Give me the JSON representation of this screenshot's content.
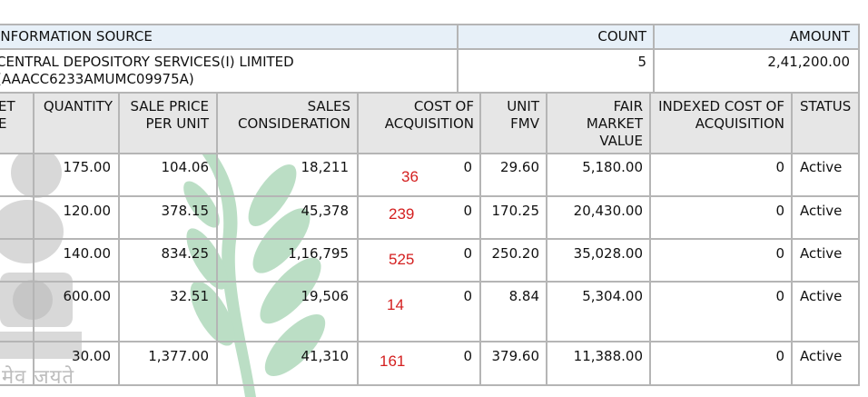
{
  "summary": {
    "headers": {
      "source": "INFORMATION SOURCE",
      "count": "COUNT",
      "amount": "AMOUNT"
    },
    "source_line1": "CENTRAL DEPOSITORY SERVICES(I) LIMITED",
    "source_line2": "(AAACC6233AMUMC09975A)",
    "count": "5",
    "amount": "2,41,200.00"
  },
  "table": {
    "columns": {
      "asset_type": [
        "ET",
        "E"
      ],
      "quantity": [
        "QUANTITY"
      ],
      "sale_price": [
        "SALE PRICE",
        "PER UNIT"
      ],
      "sales_consideration": [
        "SALES",
        "CONSIDERATION"
      ],
      "cost_of_acquisition": [
        "COST OF",
        "ACQUISITION"
      ],
      "unit_fmv": [
        "UNIT",
        "FMV"
      ],
      "fair_market_value": [
        "FAIR",
        "MARKET",
        "VALUE"
      ],
      "indexed_cost": [
        "INDEXED COST OF",
        "ACQUISITION"
      ],
      "status": [
        "STATUS"
      ]
    },
    "rows": [
      {
        "quantity": "175.00",
        "sale_price": "104.06",
        "sales_consideration": "18,211",
        "cost_of_acquisition": "0",
        "handwritten": "36",
        "unit_fmv": "29.60",
        "fair_market_value": "5,180.00",
        "indexed_cost": "0",
        "status": "Active"
      },
      {
        "quantity": "120.00",
        "sale_price": "378.15",
        "sales_consideration": "45,378",
        "cost_of_acquisition": "0",
        "handwritten": "239",
        "unit_fmv": "170.25",
        "fair_market_value": "20,430.00",
        "indexed_cost": "0",
        "status": "Active"
      },
      {
        "quantity": "140.00",
        "sale_price": "834.25",
        "sales_consideration": "1,16,795",
        "cost_of_acquisition": "0",
        "handwritten": "525",
        "unit_fmv": "250.20",
        "fair_market_value": "35,028.00",
        "indexed_cost": "0",
        "status": "Active"
      },
      {
        "quantity": "600.00",
        "sale_price": "32.51",
        "sales_consideration": "19,506",
        "cost_of_acquisition": "0",
        "handwritten": "14",
        "unit_fmv": "8.84",
        "fair_market_value": "5,304.00",
        "indexed_cost": "0",
        "status": "Active"
      },
      {
        "quantity": "30.00",
        "sale_price": "1,377.00",
        "sales_consideration": "41,310",
        "cost_of_acquisition": "0",
        "handwritten": "161",
        "unit_fmv": "379.60",
        "fair_market_value": "11,388.00",
        "indexed_cost": "0",
        "status": "Active"
      }
    ]
  },
  "watermark": {
    "emblem_motto": "मेव जयते",
    "icon": "national-emblem-icon",
    "wreath_color": "#2e9a4e"
  },
  "colors": {
    "header_bg": "#e6e6e6",
    "source_header_bg": "#e7f0f8",
    "handwritten": "#d42020"
  }
}
